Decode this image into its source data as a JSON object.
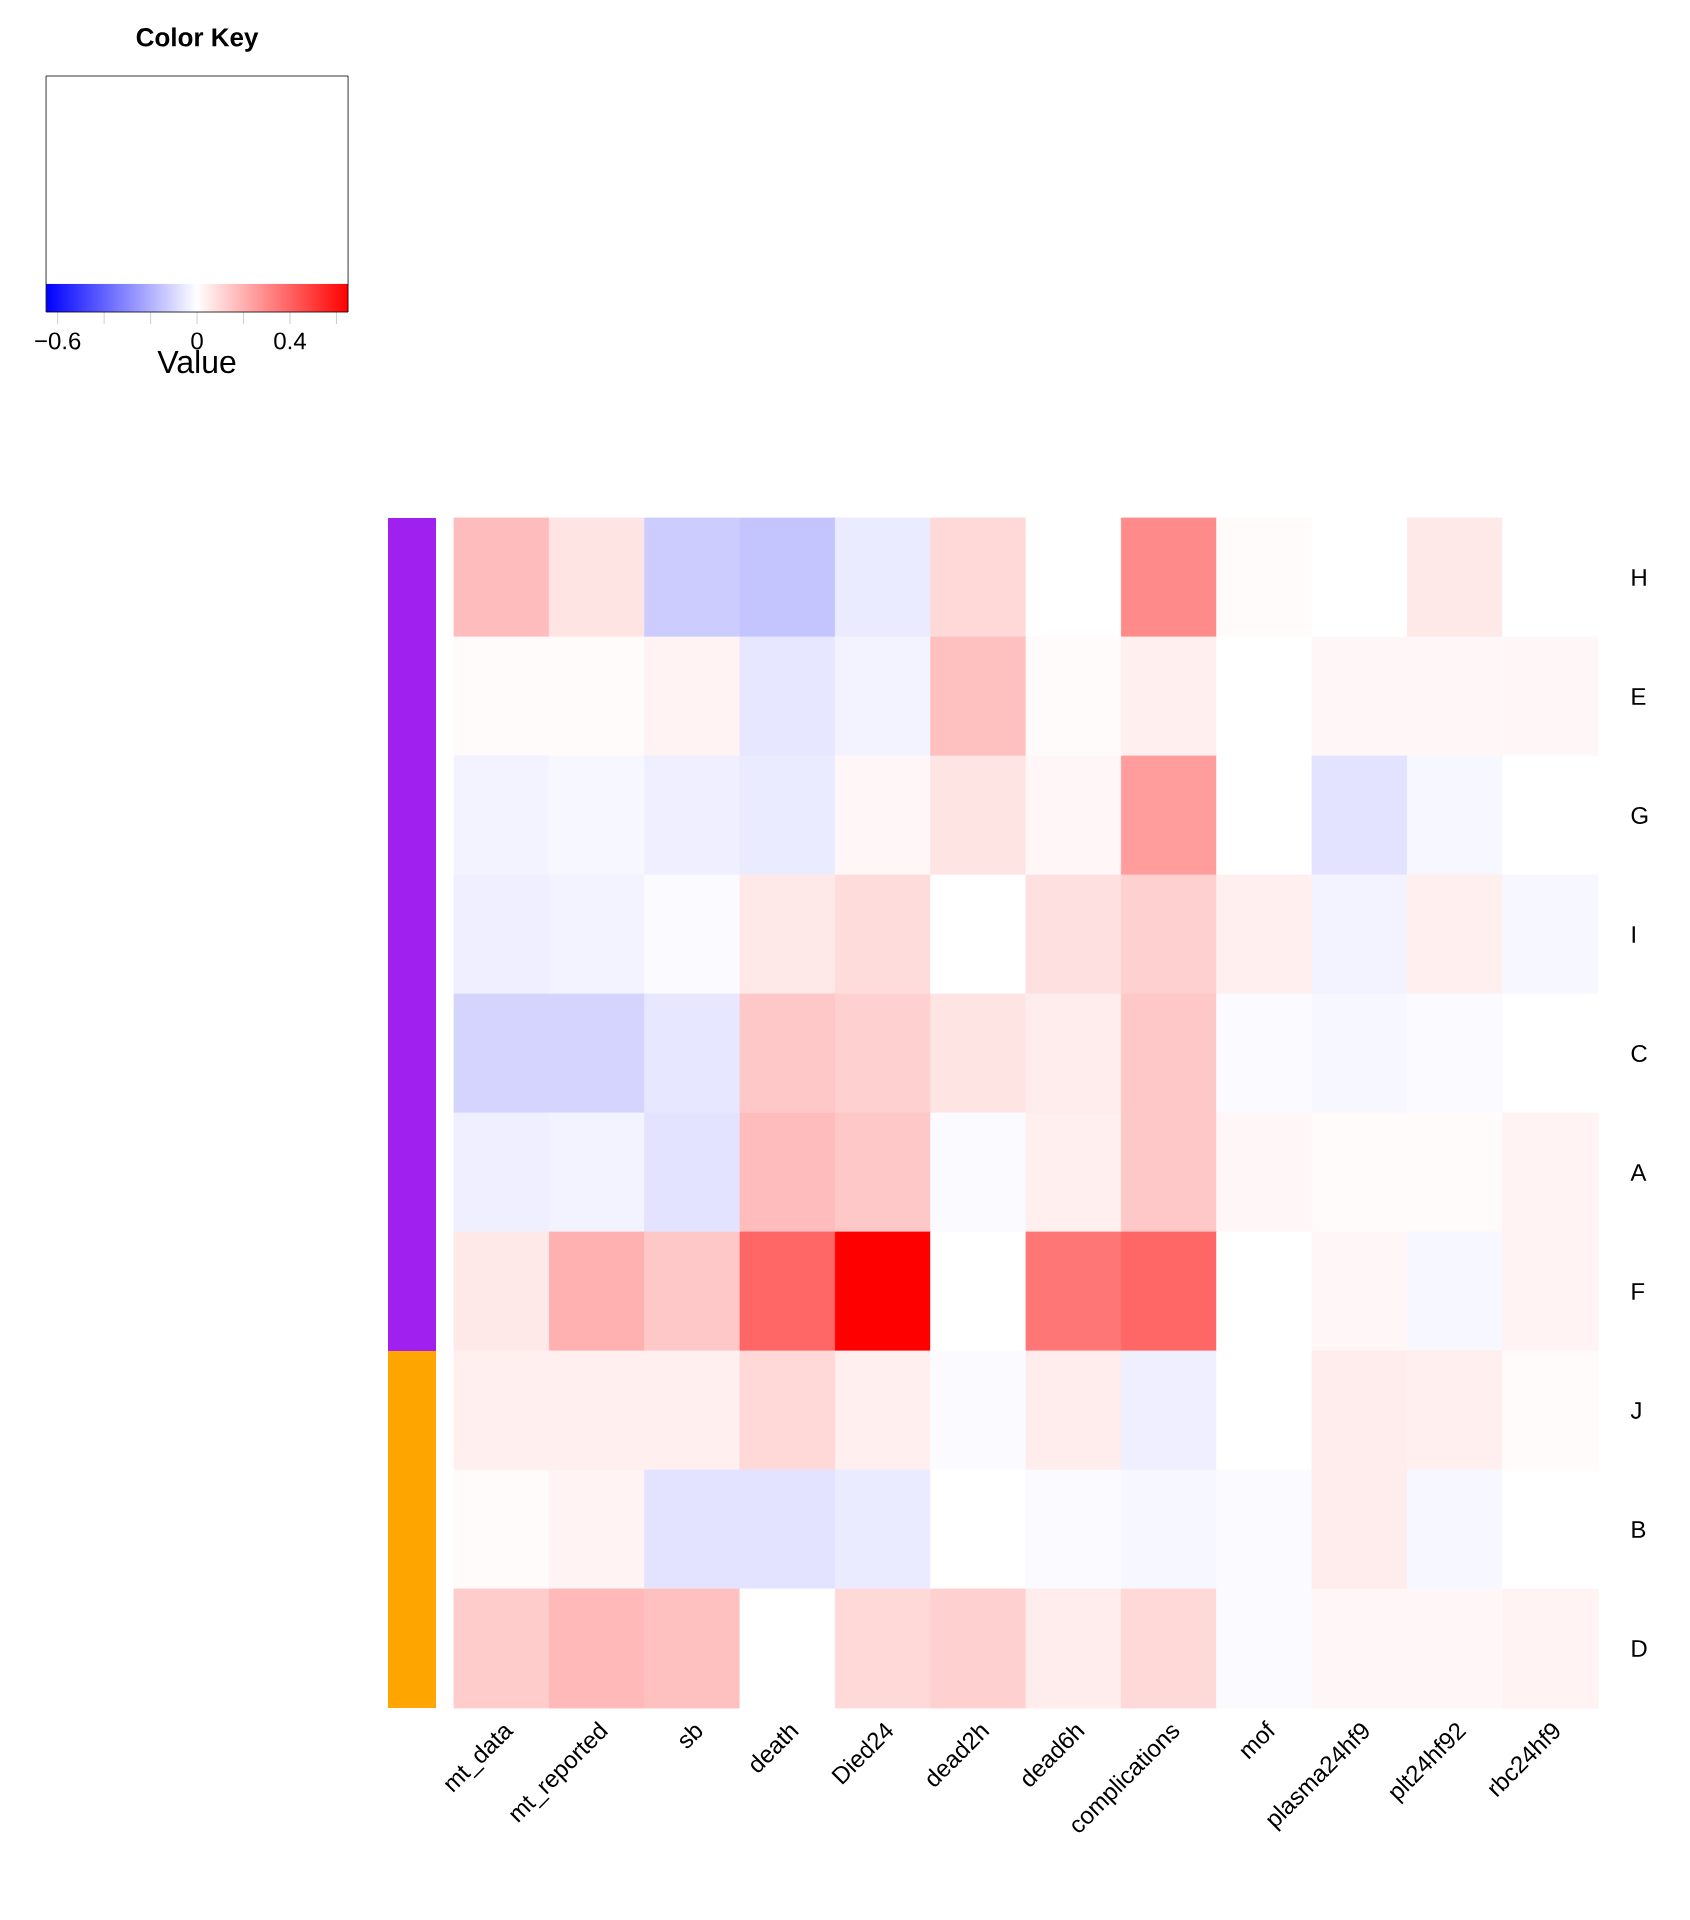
{
  "chart_data": {
    "type": "heatmap",
    "legend_title": "Color Key",
    "clabel": "Value",
    "categories": [
      "mt_data",
      "mt_reported",
      "sb",
      "death",
      "Died24",
      "dead2h",
      "dead6h",
      "complications",
      "mof",
      "plasma24hf9",
      "plt24hf92",
      "rbc24hf9"
    ],
    "y_categories": [
      "H",
      "E",
      "G",
      "I",
      "C",
      "A",
      "F",
      "J",
      "B",
      "D"
    ],
    "cells": [
      [
        0.17,
        0.07,
        -0.13,
        -0.15,
        -0.05,
        0.1,
        0,
        0.3,
        0.01,
        0,
        0.06,
        0
      ],
      [
        0.01,
        0.01,
        0.03,
        -0.06,
        -0.03,
        0.16,
        0.01,
        0.04,
        0,
        0.02,
        0.02,
        0.02
      ],
      [
        -0.03,
        -0.02,
        -0.04,
        -0.05,
        0.02,
        0.07,
        0.02,
        0.25,
        0,
        -0.07,
        -0.02,
        0
      ],
      [
        -0.04,
        -0.03,
        -0.01,
        0.06,
        0.09,
        0,
        0.08,
        0.12,
        0.04,
        -0.03,
        0.04,
        -0.02
      ],
      [
        -0.11,
        -0.11,
        -0.06,
        0.14,
        0.12,
        0.07,
        0.05,
        0.14,
        -0.01,
        -0.02,
        -0.01,
        0
      ],
      [
        -0.04,
        -0.03,
        -0.07,
        0.17,
        0.14,
        -0.01,
        0.04,
        0.14,
        0.02,
        0.01,
        0.01,
        0.03
      ],
      [
        0.06,
        0.2,
        0.14,
        0.39,
        0.65,
        0,
        0.35,
        0.39,
        0,
        0.02,
        -0.02,
        0.03
      ],
      [
        0.04,
        0.04,
        0.04,
        0.1,
        0.04,
        -0.01,
        0.05,
        -0.04,
        0,
        0.05,
        0.04,
        0.01
      ],
      [
        0.01,
        0.03,
        -0.07,
        -0.07,
        -0.05,
        0,
        -0.01,
        -0.02,
        -0.01,
        0.05,
        -0.02,
        0
      ],
      [
        0.13,
        0.18,
        0.16,
        0,
        0.1,
        0.12,
        0.05,
        0.1,
        -0.01,
        0.02,
        0.02,
        0.03
      ]
    ],
    "clim": [
      -0.65,
      0.65
    ],
    "cticks": [
      {
        "value": -0.6,
        "label": "−0.6"
      },
      {
        "value": -0.4,
        "label": null
      },
      {
        "value": -0.2,
        "label": null
      },
      0,
      {
        "value": 0.2,
        "label": null
      },
      0.4,
      {
        "value": 0.6,
        "label": null
      }
    ]
  }
}
